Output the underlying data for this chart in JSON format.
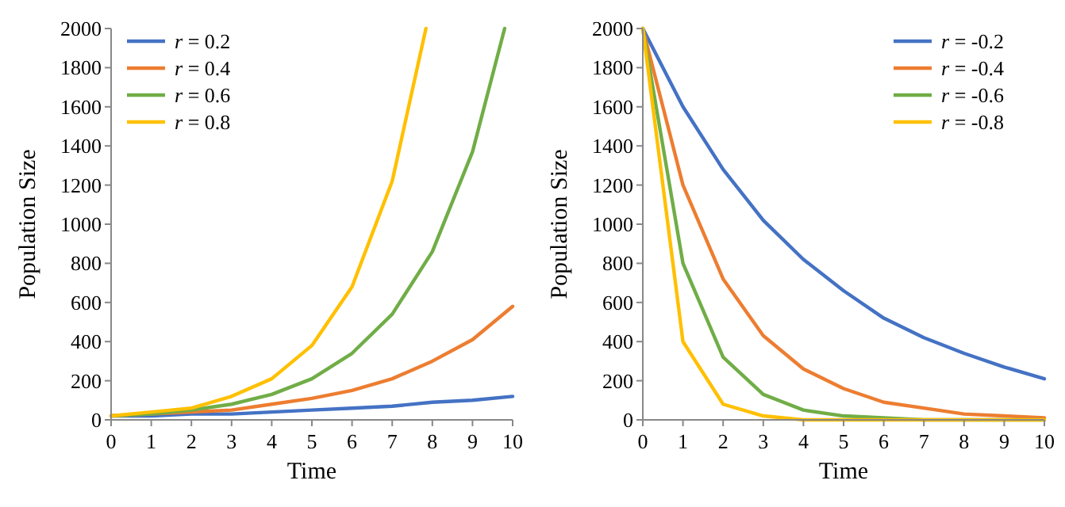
{
  "chart_data": [
    {
      "type": "line",
      "xlabel": "Time",
      "ylabel": "Population Size",
      "xlim": [
        0,
        10
      ],
      "ylim": [
        0,
        2000
      ],
      "xticks": [
        0,
        1,
        2,
        3,
        4,
        5,
        6,
        7,
        8,
        9,
        10
      ],
      "yticks": [
        0,
        200,
        400,
        600,
        800,
        1000,
        1200,
        1400,
        1600,
        1800,
        2000
      ],
      "grid": false,
      "legend": "top left",
      "marker": "none",
      "x": [
        0,
        1,
        2,
        3,
        4,
        5,
        6,
        7,
        8,
        9,
        10
      ],
      "series": [
        {
          "name": "r = 0.2",
          "color": "#4472c4",
          "values": [
            20,
            20,
            30,
            30,
            40,
            50,
            60,
            70,
            90,
            100,
            120
          ]
        },
        {
          "name": "r = 0.4",
          "color": "#ed7d31",
          "values": [
            20,
            30,
            40,
            50,
            80,
            110,
            150,
            210,
            300,
            410,
            580
          ]
        },
        {
          "name": "r = 0.6",
          "color": "#70ad47",
          "x": [
            0,
            1,
            2,
            3,
            4,
            5,
            6,
            7,
            8,
            9,
            9.8
          ],
          "values": [
            20,
            30,
            50,
            80,
            130,
            210,
            340,
            540,
            860,
            1370,
            2000
          ]
        },
        {
          "name": "r = 0.8",
          "color": "#ffc000",
          "x": [
            0,
            1,
            2,
            3,
            4,
            5,
            6,
            7,
            7.84
          ],
          "values": [
            20,
            40,
            60,
            120,
            210,
            380,
            680,
            1220,
            2000
          ]
        }
      ]
    },
    {
      "type": "line",
      "xlabel": "Time",
      "ylabel": "Population Size",
      "xlim": [
        0,
        10
      ],
      "ylim": [
        0,
        2000
      ],
      "xticks": [
        0,
        1,
        2,
        3,
        4,
        5,
        6,
        7,
        8,
        9,
        10
      ],
      "yticks": [
        0,
        200,
        400,
        600,
        800,
        1000,
        1200,
        1400,
        1600,
        1800,
        2000
      ],
      "grid": false,
      "legend": "top right",
      "marker": "none",
      "x": [
        0,
        1,
        2,
        3,
        4,
        5,
        6,
        7,
        8,
        9,
        10
      ],
      "series": [
        {
          "name": "r = -0.2",
          "color": "#4472c4",
          "values": [
            2000,
            1600,
            1280,
            1020,
            820,
            660,
            520,
            420,
            340,
            270,
            210
          ]
        },
        {
          "name": "r = -0.4",
          "color": "#ed7d31",
          "values": [
            2000,
            1200,
            720,
            430,
            260,
            160,
            90,
            60,
            30,
            20,
            10
          ]
        },
        {
          "name": "r = -0.6",
          "color": "#70ad47",
          "values": [
            2000,
            800,
            320,
            130,
            50,
            20,
            10,
            0,
            0,
            0,
            0
          ]
        },
        {
          "name": "r = -0.8",
          "color": "#ffc000",
          "values": [
            2000,
            400,
            80,
            20,
            0,
            0,
            0,
            0,
            0,
            0,
            0
          ]
        }
      ]
    }
  ]
}
